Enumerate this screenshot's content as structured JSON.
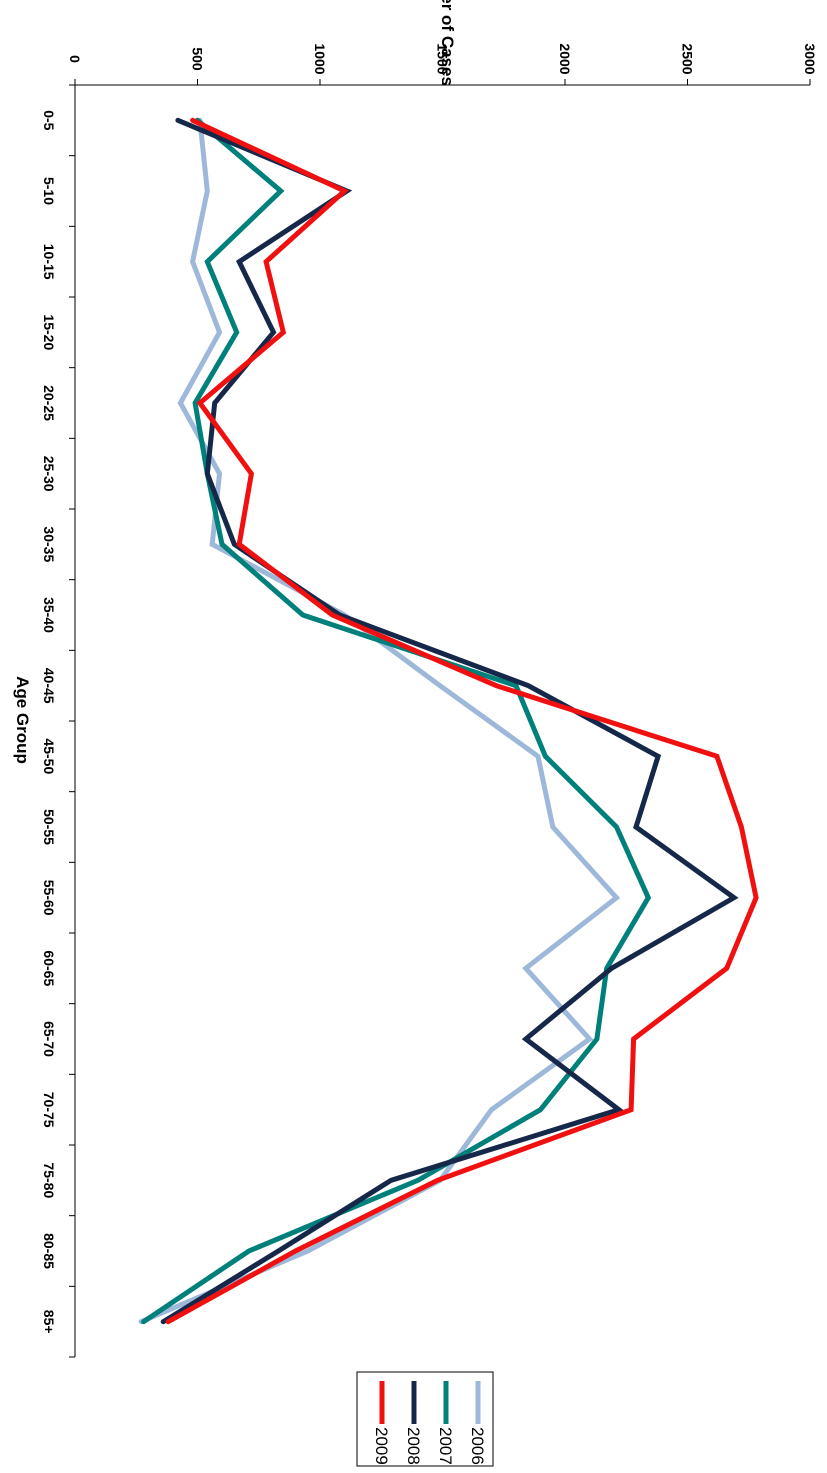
{
  "chart_data": {
    "type": "line",
    "xlabel": "Age Group",
    "ylabel": "Number of Cases",
    "ylim": [
      0,
      3000
    ],
    "yticks": [
      0,
      500,
      1000,
      1500,
      2000,
      2500,
      3000
    ],
    "categories": [
      "0-5",
      "5-10",
      "10-15",
      "15-20",
      "20-25",
      "25-30",
      "30-35",
      "35-40",
      "40-45",
      "45-50",
      "50-55",
      "55-60",
      "60-65",
      "65-70",
      "70-75",
      "75-80",
      "80-85",
      "85+"
    ],
    "grid": false,
    "legend_position": "bottom-right",
    "series": [
      {
        "name": "2006",
        "color": "#9db8d9",
        "values": [
          510,
          540,
          480,
          590,
          430,
          590,
          560,
          1100,
          1490,
          1890,
          1950,
          2210,
          1840,
          2100,
          1700,
          1490,
          950,
          270
        ]
      },
      {
        "name": "2007",
        "color": "#00807a",
        "values": [
          500,
          840,
          540,
          660,
          490,
          540,
          600,
          930,
          1800,
          1920,
          2210,
          2340,
          2170,
          2130,
          1900,
          1400,
          710,
          280
        ]
      },
      {
        "name": "2008",
        "color": "#16284a",
        "values": [
          420,
          1110,
          670,
          810,
          570,
          540,
          650,
          1080,
          1850,
          2380,
          2290,
          2690,
          2190,
          1840,
          2220,
          1290,
          830,
          360
        ]
      },
      {
        "name": "2009",
        "color": "#f01010",
        "values": [
          480,
          1100,
          780,
          850,
          510,
          720,
          670,
          1050,
          1720,
          2620,
          2720,
          2780,
          2660,
          2280,
          2270,
          1480,
          900,
          380
        ]
      }
    ]
  }
}
